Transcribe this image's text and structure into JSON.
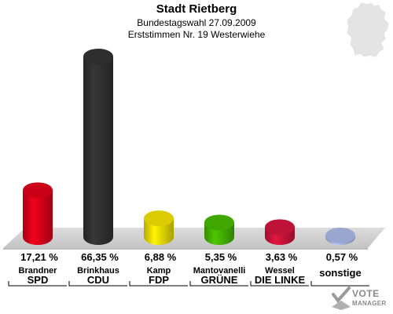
{
  "header": {
    "title": "Stadt Rietberg",
    "subtitle1": "Bundestagswahl 27.09.2009",
    "subtitle2": "Erststimmen Nr. 19 Westerwiehe"
  },
  "chart_data": {
    "type": "bar",
    "categories": [
      "SPD",
      "CDU",
      "FDP",
      "GRÜNE",
      "DIE LINKE",
      "sonstige"
    ],
    "candidates": [
      "Brandner",
      "Brinkhaus",
      "Kamp",
      "Mantovanelli",
      "Wessel",
      ""
    ],
    "values": [
      17.21,
      66.35,
      6.88,
      5.35,
      3.63,
      0.57
    ],
    "value_labels": [
      "17,21 %",
      "66,35 %",
      "6,88 %",
      "5,35 %",
      "3,63 %",
      "0,57 %"
    ],
    "colors": [
      "#e2001a",
      "#333333",
      "#f4e200",
      "#46b900",
      "#d3143c",
      "#aab8e6"
    ],
    "ylim": [
      0,
      66.35
    ]
  },
  "logo": {
    "line1": "VOTE",
    "line2": "MANAGER"
  }
}
